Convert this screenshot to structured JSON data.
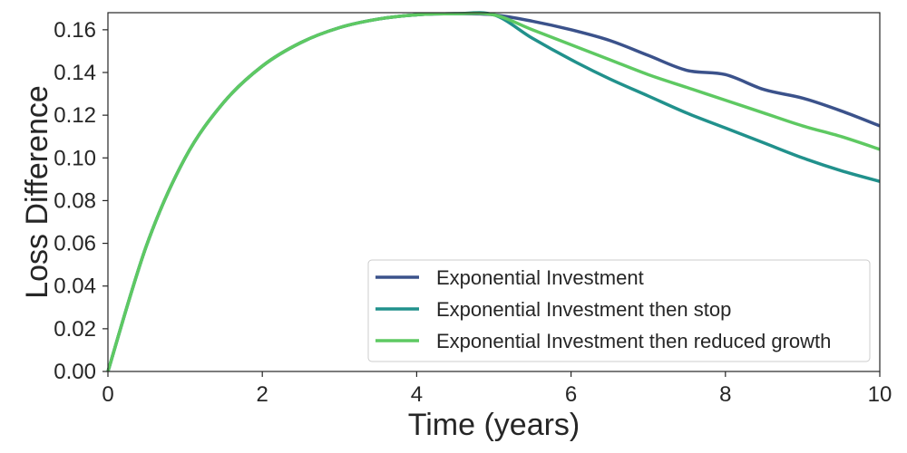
{
  "chart_data": {
    "type": "line",
    "xlabel": "Time (years)",
    "ylabel": "Loss Difference",
    "xlim": [
      0,
      10
    ],
    "ylim": [
      0,
      0.168
    ],
    "xticks": [
      0,
      2,
      4,
      6,
      8,
      10
    ],
    "xtick_labels": [
      "0",
      "2",
      "4",
      "6",
      "8",
      "10"
    ],
    "yticks": [
      0,
      0.02,
      0.04,
      0.06,
      0.08,
      0.1,
      0.12,
      0.14,
      0.16
    ],
    "ytick_labels": [
      "0.00",
      "0.02",
      "0.04",
      "0.06",
      "0.08",
      "0.10",
      "0.12",
      "0.14",
      "0.16"
    ],
    "grid": false,
    "legend_position": "lower-right",
    "series": [
      {
        "name": "Exponential Investment",
        "color": "#3b528b",
        "x": [
          0,
          0.5,
          1,
          1.5,
          2,
          2.5,
          3,
          3.5,
          4,
          4.5,
          5,
          5.5,
          6,
          6.5,
          7,
          7.5,
          8,
          8.5,
          9,
          9.5,
          10
        ],
        "y": [
          0,
          0.059,
          0.1,
          0.126,
          0.143,
          0.154,
          0.161,
          0.165,
          0.167,
          0.1675,
          0.167,
          0.164,
          0.16,
          0.155,
          0.148,
          0.141,
          0.139,
          0.132,
          0.128,
          0.122,
          0.115
        ]
      },
      {
        "name": "Exponential Investment then stop",
        "color": "#21918c",
        "x": [
          0,
          0.5,
          1,
          1.5,
          2,
          2.5,
          3,
          3.5,
          4,
          4.5,
          5,
          5.5,
          6,
          6.5,
          7,
          7.5,
          8,
          8.5,
          9,
          9.5,
          10
        ],
        "y": [
          0,
          0.059,
          0.1,
          0.126,
          0.143,
          0.154,
          0.161,
          0.165,
          0.167,
          0.1675,
          0.167,
          0.156,
          0.146,
          0.137,
          0.129,
          0.121,
          0.114,
          0.107,
          0.1,
          0.094,
          0.089
        ]
      },
      {
        "name": "Exponential Investment then reduced growth",
        "color": "#5ec962",
        "x": [
          0,
          0.5,
          1,
          1.5,
          2,
          2.5,
          3,
          3.5,
          4,
          4.5,
          5,
          5.5,
          6,
          6.5,
          7,
          7.5,
          8,
          8.5,
          9,
          9.5,
          10
        ],
        "y": [
          0,
          0.059,
          0.1,
          0.126,
          0.143,
          0.154,
          0.161,
          0.165,
          0.167,
          0.1675,
          0.167,
          0.16,
          0.153,
          0.146,
          0.139,
          0.133,
          0.127,
          0.121,
          0.115,
          0.11,
          0.104
        ]
      }
    ]
  }
}
